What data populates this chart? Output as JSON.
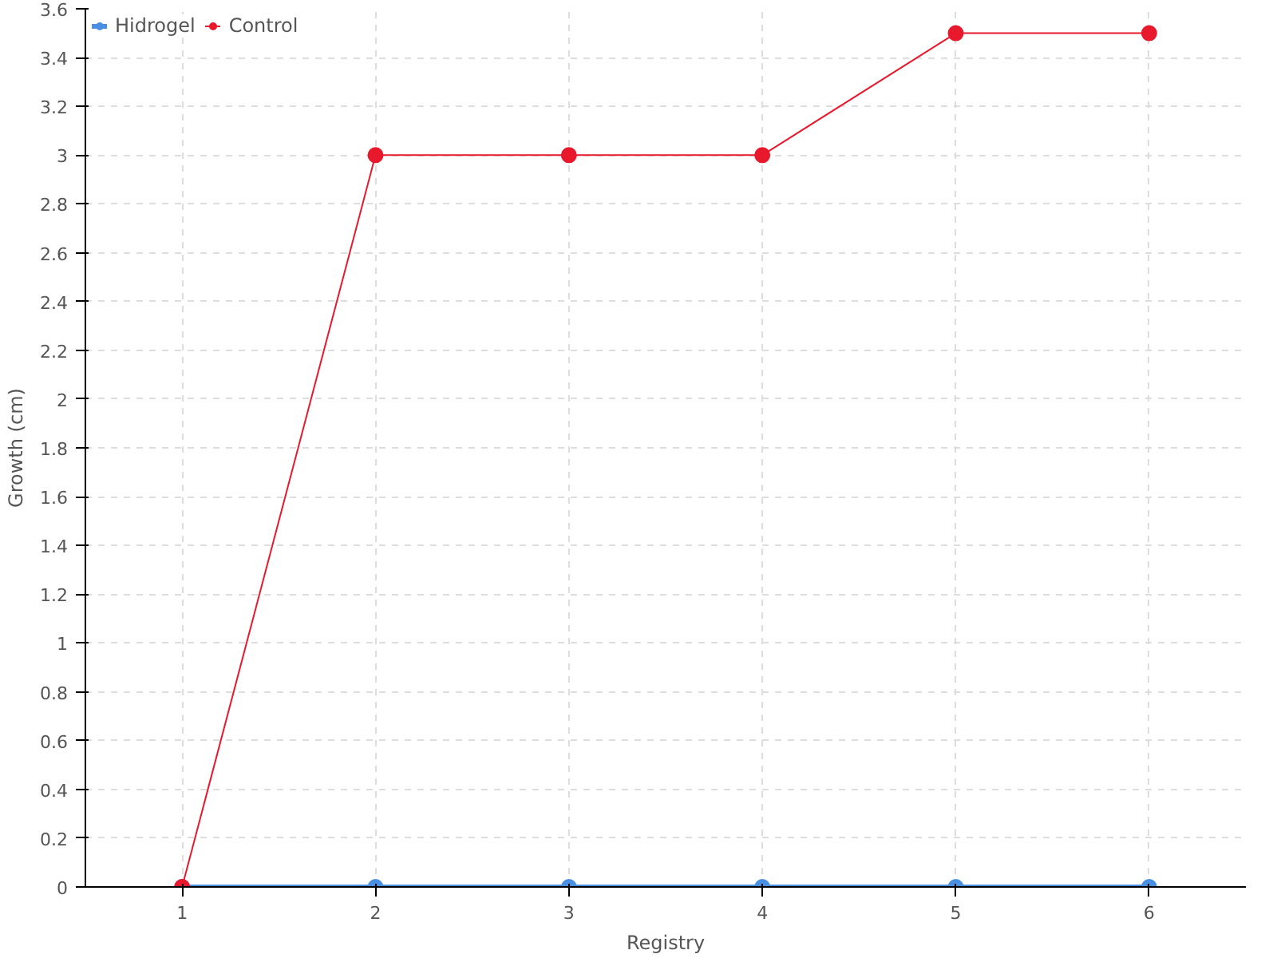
{
  "chart_data": {
    "type": "line",
    "xlabel": "Registry",
    "ylabel": "Growth (cm)",
    "x": [
      1,
      2,
      3,
      4,
      5,
      6
    ],
    "series": [
      {
        "name": "Hidrogel",
        "color": "#4a90e2",
        "values": [
          0,
          0,
          0,
          0,
          0,
          0
        ]
      },
      {
        "name": "Control",
        "color": "#e8192c",
        "values": [
          0,
          3,
          3,
          3,
          3.5,
          3.5
        ]
      }
    ],
    "xlim": [
      0.5,
      6.5
    ],
    "xticks": [
      1,
      2,
      3,
      4,
      5,
      6
    ],
    "ylim": [
      0,
      3.6
    ],
    "yticks": [
      0,
      0.2,
      0.4,
      0.6,
      0.8,
      1,
      1.2,
      1.4,
      1.6,
      1.8,
      2,
      2.2,
      2.4,
      2.6,
      2.8,
      3,
      3.2,
      3.4,
      3.6
    ],
    "grid": true,
    "legend": "top left",
    "marker": "circle",
    "line_style": "solid"
  }
}
